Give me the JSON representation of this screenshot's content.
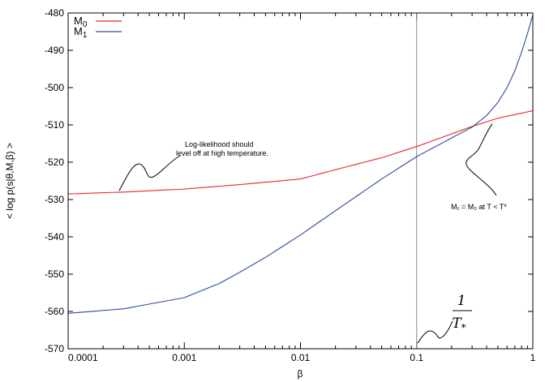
{
  "chart_data": {
    "type": "line",
    "xscale": "log",
    "xlim": [
      0.0001,
      1
    ],
    "ylim": [
      -570,
      -480
    ],
    "xticks": [
      "0.0001",
      "0.001",
      "0.01",
      "0.1",
      "1"
    ],
    "yticks": [
      "-480",
      "-490",
      "-500",
      "-510",
      "-520",
      "-530",
      "-540",
      "-550",
      "-560",
      "-570"
    ],
    "xlabel": "β",
    "ylabel": "< log p(s|θ,M,β) >",
    "grid": false,
    "legend_position": "top-left",
    "series": [
      {
        "name_main": "M",
        "name_sub": "0",
        "color": "#e8262a",
        "x": [
          0.0001,
          0.0003,
          0.001,
          0.003,
          0.01,
          0.02,
          0.05,
          0.1,
          0.2,
          0.3,
          0.5,
          1
        ],
        "y": [
          -528.5,
          -528.0,
          -527.2,
          -526.0,
          -524.5,
          -522.0,
          -518.8,
          -515.8,
          -512.4,
          -510.4,
          -508.2,
          -506.2
        ]
      },
      {
        "name_main": "M",
        "name_sub": "1",
        "color": "#2c4a9c",
        "x": [
          0.0001,
          0.0003,
          0.001,
          0.002,
          0.003,
          0.005,
          0.01,
          0.02,
          0.05,
          0.1,
          0.2,
          0.3,
          0.4,
          0.5,
          0.6,
          0.7,
          0.8,
          0.9,
          1
        ],
        "y": [
          -560.5,
          -559.3,
          -556.3,
          -552.5,
          -549.5,
          -545.5,
          -539.5,
          -533.0,
          -524.5,
          -518.5,
          -513.5,
          -510.6,
          -507.5,
          -504.0,
          -500.0,
          -495.5,
          -490.5,
          -485.5,
          -480.5
        ]
      }
    ],
    "annotations": {
      "leveloff_line1": "Log-likelihood should",
      "leveloff_line2": "level off at high temperature.",
      "crossing_text": "M₁ = M₀ at T < T*",
      "frac_numerator": "1",
      "frac_denominator": "T",
      "frac_denominator_sub": "*"
    },
    "vline_x": 0.1
  }
}
